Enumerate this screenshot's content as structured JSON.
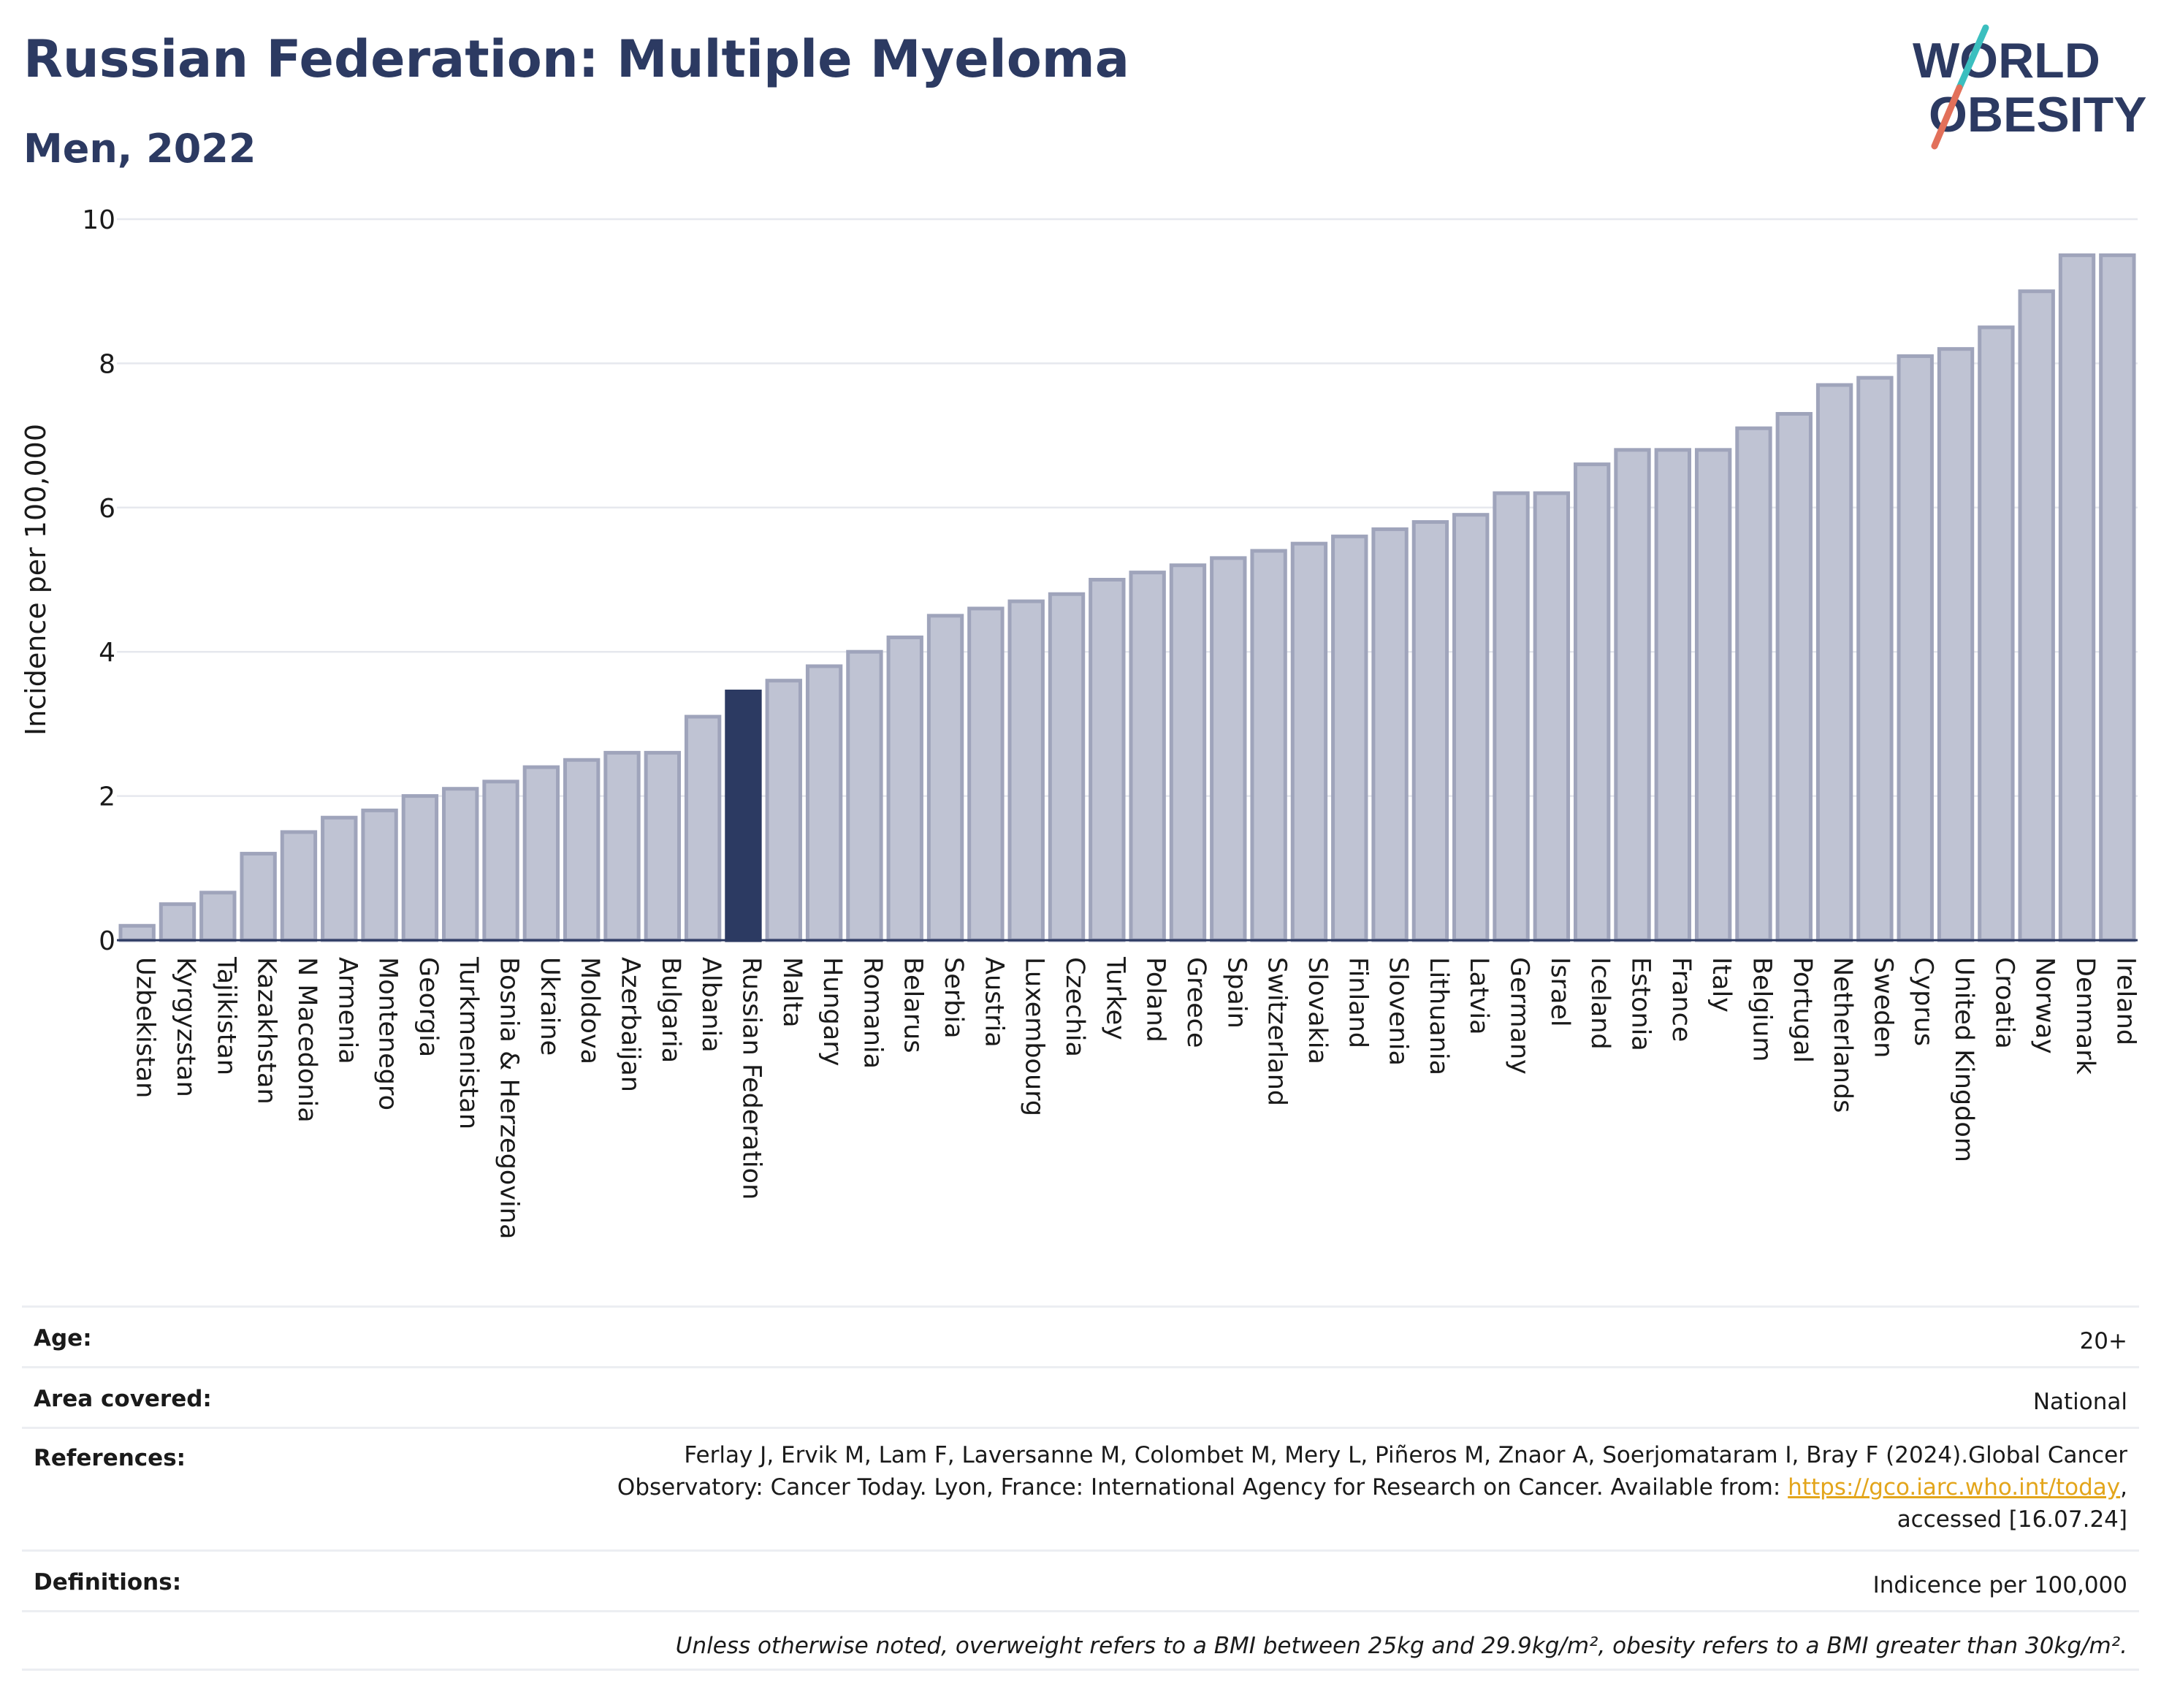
{
  "header": {
    "title": "Russian Federation: Multiple Myeloma",
    "subtitle": "Men, 2022",
    "logo_line1": "WORLD",
    "logo_line2": "OBESITY"
  },
  "colors": {
    "title": "#2c3a62",
    "bar": "#bfc3d3",
    "bar_stroke": "#9fa4bb",
    "highlight": "#2c3a62",
    "link": "#e3a51b",
    "logo_teal": "#3bbfbf",
    "logo_coral": "#e2705a"
  },
  "chart_data": {
    "type": "bar",
    "ylabel": "Incidence per 100,000",
    "xlabel": "",
    "ylim": [
      0,
      10
    ],
    "yticks": [
      "0",
      "2",
      "4",
      "6",
      "8",
      "10"
    ],
    "grid": true,
    "highlight": "Russian Federation",
    "categories": [
      "Uzbekistan",
      "Kyrgyzstan",
      "Tajikistan",
      "Kazakhstan",
      "N Macedonia",
      "Armenia",
      "Montenegro",
      "Georgia",
      "Turkmenistan",
      "Bosnia & Herzegovina",
      "Ukraine",
      "Moldova",
      "Azerbaijan",
      "Bulgaria",
      "Albania",
      "Russian Federation",
      "Malta",
      "Hungary",
      "Romania",
      "Belarus",
      "Serbia",
      "Austria",
      "Luxembourg",
      "Czechia",
      "Turkey",
      "Poland",
      "Greece",
      "Spain",
      "Switzerland",
      "Slovakia",
      "Finland",
      "Slovenia",
      "Lithuania",
      "Latvia",
      "Germany",
      "Israel",
      "Iceland",
      "Estonia",
      "France",
      "Italy",
      "Belgium",
      "Portugal",
      "Netherlands",
      "Sweden",
      "Cyprus",
      "United Kingdom",
      "Croatia",
      "Norway",
      "Denmark",
      "Ireland"
    ],
    "values": [
      0.2,
      0.5,
      0.66,
      1.2,
      1.5,
      1.7,
      1.8,
      2.0,
      2.1,
      2.2,
      2.4,
      2.5,
      2.6,
      2.6,
      3.1,
      3.45,
      3.6,
      3.8,
      4.0,
      4.2,
      4.5,
      4.6,
      4.7,
      4.8,
      5.0,
      5.1,
      5.2,
      5.3,
      5.4,
      5.5,
      5.6,
      5.7,
      5.8,
      5.9,
      6.2,
      6.2,
      6.6,
      6.8,
      6.8,
      6.8,
      7.1,
      7.3,
      7.7,
      7.8,
      8.1,
      8.2,
      8.5,
      9.0,
      9.5,
      9.5
    ]
  },
  "info": {
    "age_label": "Age:",
    "age_value": "20+",
    "area_label": "Area covered:",
    "area_value": "National",
    "references_label": "References:",
    "references_line1": "Ferlay J, Ervik M, Lam F, Laversanne M, Colombet M, Mery L, Piñeros M, Znaor A, Soerjomataram I, Bray F (2024).Global Cancer",
    "references_line2_pre": "Observatory: Cancer Today. Lyon, France: International Agency for Research on Cancer. Available from: ",
    "references_link": "https://gco.iarc.who.int/today",
    "references_line2_post": ",",
    "references_line3": "accessed [16.07.24]",
    "definitions_label": "Definitions:",
    "definitions_value": "Indicence per 100,000",
    "note": "Unless otherwise noted, overweight refers to a BMI between 25kg and 29.9kg/m², obesity refers to a BMI greater than 30kg/m²."
  }
}
